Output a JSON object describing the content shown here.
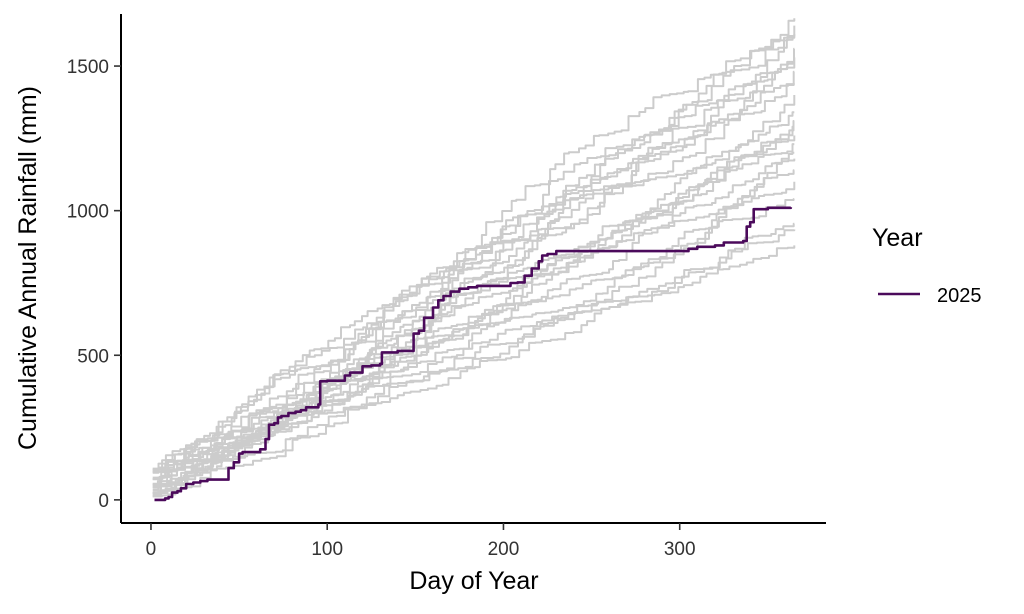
{
  "chart_data": {
    "type": "line",
    "title": "",
    "xlabel": "Day of Year",
    "ylabel": "Cumulative Annual Rainfall (mm)",
    "xlim": [
      -17,
      383
    ],
    "ylim": [
      -80,
      1680
    ],
    "x_ticks": [
      0,
      100,
      200,
      300
    ],
    "y_ticks": [
      0,
      500,
      1000,
      1500
    ],
    "x_tick_labels": [
      "0",
      "100",
      "200",
      "300"
    ],
    "y_tick_labels": [
      "0",
      "500",
      "1000",
      "1500"
    ],
    "grid": false,
    "legend": {
      "title": "Year",
      "position": "right",
      "entries": [
        "2025"
      ]
    },
    "colors": {
      "highlight": "#4b0a5b",
      "background_years": "#cccccc",
      "axis": "#000000"
    },
    "highlight_series": {
      "name": "2025",
      "points": [
        [
          2,
          0
        ],
        [
          8,
          5
        ],
        [
          10,
          10
        ],
        [
          12,
          25
        ],
        [
          15,
          30
        ],
        [
          17,
          40
        ],
        [
          20,
          55
        ],
        [
          24,
          60
        ],
        [
          28,
          65
        ],
        [
          32,
          70
        ],
        [
          38,
          70
        ],
        [
          43,
          70
        ],
        [
          44,
          110
        ],
        [
          47,
          130
        ],
        [
          50,
          160
        ],
        [
          52,
          165
        ],
        [
          58,
          165
        ],
        [
          62,
          175
        ],
        [
          65,
          210
        ],
        [
          67,
          260
        ],
        [
          70,
          265
        ],
        [
          72,
          285
        ],
        [
          74,
          290
        ],
        [
          78,
          300
        ],
        [
          82,
          305
        ],
        [
          85,
          310
        ],
        [
          88,
          320
        ],
        [
          93,
          320
        ],
        [
          95,
          330
        ],
        [
          96,
          410
        ],
        [
          100,
          412
        ],
        [
          108,
          412
        ],
        [
          110,
          430
        ],
        [
          113,
          440
        ],
        [
          117,
          440
        ],
        [
          120,
          462
        ],
        [
          125,
          465
        ],
        [
          130,
          470
        ],
        [
          131,
          510
        ],
        [
          140,
          515
        ],
        [
          148,
          515
        ],
        [
          149,
          575
        ],
        [
          152,
          585
        ],
        [
          155,
          630
        ],
        [
          160,
          665
        ],
        [
          163,
          690
        ],
        [
          166,
          705
        ],
        [
          170,
          720
        ],
        [
          175,
          730
        ],
        [
          180,
          735
        ],
        [
          185,
          740
        ],
        [
          192,
          740
        ],
        [
          200,
          740
        ],
        [
          204,
          750
        ],
        [
          208,
          752
        ],
        [
          212,
          775
        ],
        [
          216,
          800
        ],
        [
          220,
          825
        ],
        [
          222,
          845
        ],
        [
          225,
          850
        ],
        [
          230,
          860
        ],
        [
          240,
          860
        ],
        [
          250,
          860
        ],
        [
          275,
          860
        ],
        [
          300,
          860
        ],
        [
          305,
          868
        ],
        [
          310,
          875
        ],
        [
          320,
          880
        ],
        [
          325,
          890
        ],
        [
          336,
          895
        ],
        [
          338,
          945
        ],
        [
          340,
          960
        ],
        [
          342,
          1005
        ],
        [
          350,
          1010
        ],
        [
          363,
          1012
        ]
      ]
    },
    "background_series_totals": [
      880,
      935,
      955,
      1040,
      1100,
      1140,
      1180,
      1200,
      1230,
      1260,
      1290,
      1310,
      1340,
      1400,
      1440,
      1480,
      1510,
      1530,
      1560,
      1600,
      1610,
      1640,
      1665
    ]
  }
}
